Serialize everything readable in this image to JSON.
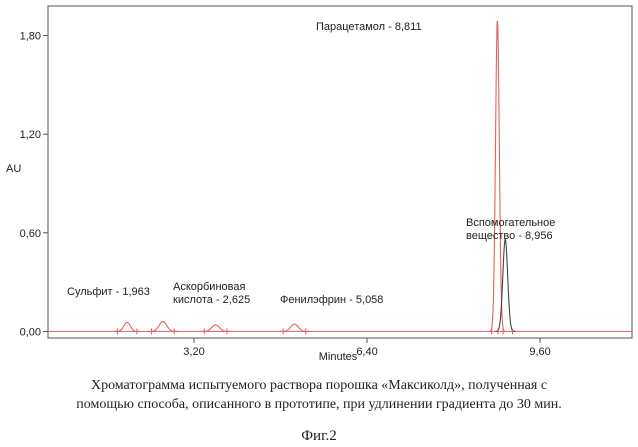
{
  "chart_data": {
    "type": "line",
    "ylabel": "AU",
    "xlabel": "Minutes",
    "xlim": [
      0.5,
      11.3
    ],
    "ylim": [
      -0.04,
      1.98
    ],
    "yticks": [
      {
        "value": 0.0,
        "label": "0,00"
      },
      {
        "value": 0.6,
        "label": "0,60"
      },
      {
        "value": 1.2,
        "label": "1,20"
      },
      {
        "value": 1.8,
        "label": "1,80"
      }
    ],
    "xticks": [
      {
        "value": 3.2,
        "label": "3,20"
      },
      {
        "value": 6.4,
        "label": "6,40"
      },
      {
        "value": 9.6,
        "label": "9,60"
      }
    ],
    "peaks": [
      {
        "rt": 1.963,
        "height": 0.055,
        "label_lines": [
          "Сульфит - 1,963"
        ]
      },
      {
        "rt": 2.625,
        "height": 0.06,
        "label_lines": [
          "Аскорбиновая",
          "кислота - 2,625"
        ]
      },
      {
        "rt": 3.6,
        "height": 0.04,
        "label_lines": []
      },
      {
        "rt": 5.058,
        "height": 0.045,
        "label_lines": [
          "Фенилэфрин - 5,058"
        ]
      },
      {
        "rt": 8.811,
        "height": 1.89,
        "label_lines": [
          "Парацетамол - 8,811"
        ]
      },
      {
        "rt": 8.956,
        "height": 0.56,
        "label_lines": [
          "Вспомогательное",
          "вещество - 8,956"
        ]
      }
    ],
    "trace_color": "#e06060",
    "trace2_color": "#444444"
  },
  "caption": {
    "line1": "Хроматограмма испытуемого раствора порошка «Максиколд», полученная с",
    "line2": "помощью способа, описанного в прототипе, при удлинении градиента до 30 мин.",
    "figure": "Фиг.2"
  }
}
